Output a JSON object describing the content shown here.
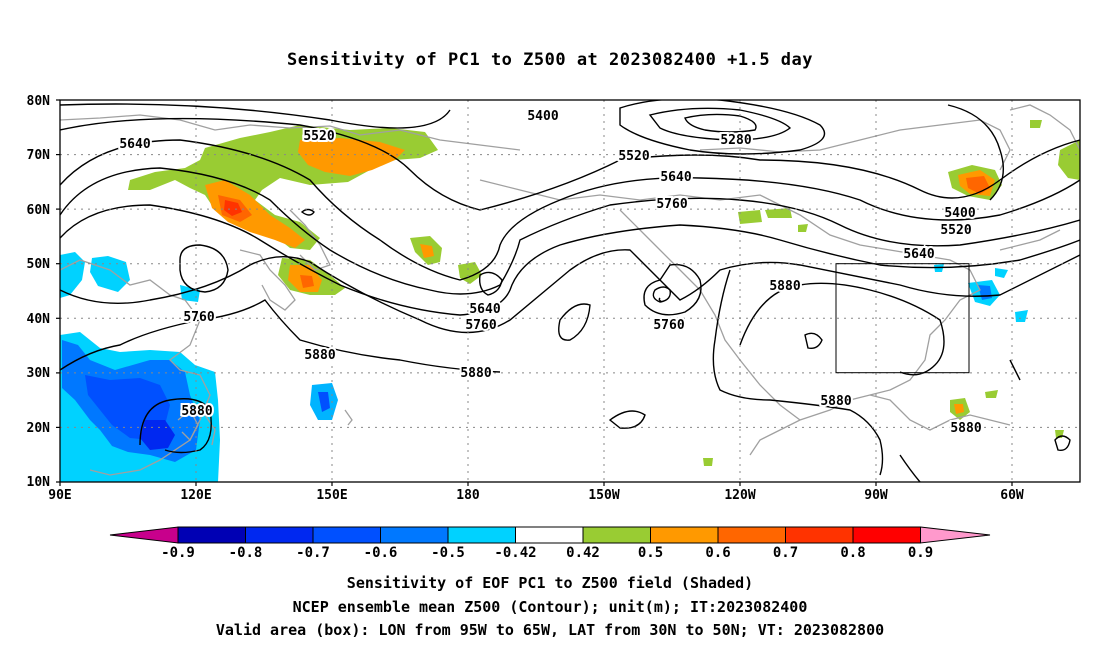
{
  "title": "Sensitivity of PC1 to Z500 at 2023082400 +1.5 day",
  "map": {
    "lon_range": [
      "90E",
      "50W"
    ],
    "lat_range": [
      "10N",
      "80N"
    ],
    "lat_labels": [
      "80N",
      "70N",
      "60N",
      "50N",
      "40N",
      "30N",
      "20N",
      "10N"
    ],
    "lon_labels": [
      "90E",
      "120E",
      "150E",
      "180",
      "150W",
      "120W",
      "90W",
      "60W"
    ],
    "contour_labels": [
      "5400",
      "5280",
      "5520",
      "5640",
      "5640",
      "5760",
      "5520",
      "5400",
      "5520",
      "5640",
      "5880",
      "5640",
      "5760",
      "5760",
      "5760",
      "5880",
      "5880",
      "5880",
      "5880",
      "5880"
    ],
    "valid_box": {
      "lon_west": "95W",
      "lon_east": "65W",
      "lat_south": "30N",
      "lat_north": "50N"
    }
  },
  "colorbar": {
    "labels": [
      "-0.9",
      "-0.8",
      "-0.7",
      "-0.6",
      "-0.5",
      "-0.42",
      "0.42",
      "0.5",
      "0.6",
      "0.7",
      "0.8",
      "0.9"
    ],
    "colors": [
      "#c8008c",
      "#0000b4",
      "#0028f0",
      "#0050ff",
      "#0078ff",
      "#00b4ff",
      "#00d2ff",
      "#ffffff",
      "#99cc33",
      "#ff9900",
      "#ff6600",
      "#ff3300",
      "#ff0000",
      "#ff99cc"
    ]
  },
  "shading_colors": {
    "light_blue": "#00d2ff",
    "sky_blue": "#00b4ff",
    "blue": "#0078ff",
    "mid_blue": "#0050ff",
    "green": "#99cc33",
    "orange": "#ff9900",
    "dark_orange": "#ff6600",
    "red": "#ff3300"
  },
  "captions": [
    "Sensitivity of EOF PC1 to Z500 field (Shaded)",
    "NCEP ensemble mean Z500 (Contour); unit(m); IT:2023082400",
    "Valid area (box): LON from 95W to 65W, LAT from 30N to 50N; VT: 2023082800"
  ]
}
